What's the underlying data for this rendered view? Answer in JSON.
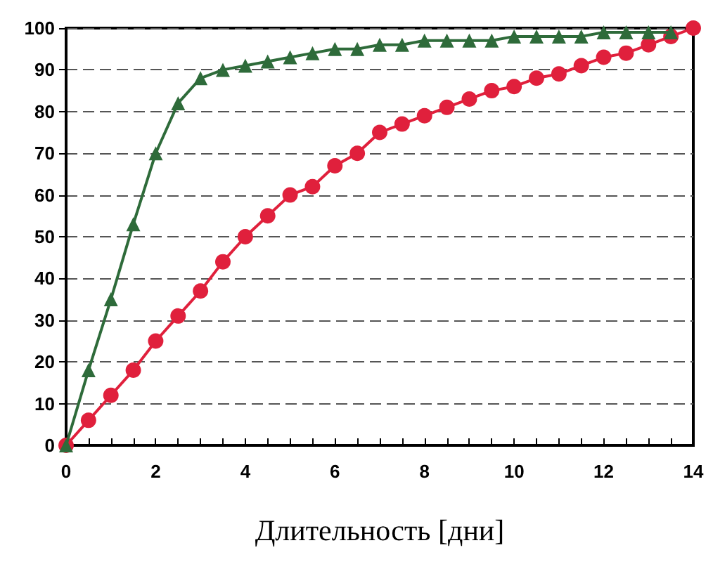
{
  "chart_data": {
    "type": "line",
    "xlabel": "Длительность [дни]",
    "x": [
      0,
      0.5,
      1,
      1.5,
      2,
      2.5,
      3,
      3.5,
      4,
      4.5,
      5,
      5.5,
      6,
      6.5,
      7,
      7.5,
      8,
      8.5,
      9,
      9.5,
      10,
      10.5,
      11,
      11.5,
      12,
      12.5,
      13,
      13.5,
      14
    ],
    "series": [
      {
        "color": "#2e6b3a",
        "marker": "triangle",
        "values": [
          0,
          18,
          35,
          53,
          70,
          82,
          88,
          90,
          91,
          92,
          93,
          94,
          95,
          95,
          96,
          96,
          97,
          97,
          97,
          97,
          98,
          98,
          98,
          98,
          99,
          99,
          99,
          99,
          null
        ]
      },
      {
        "color": "#e0203c",
        "marker": "circle",
        "values": [
          0,
          6,
          12,
          18,
          25,
          31,
          37,
          44,
          50,
          55,
          60,
          62,
          67,
          70,
          75,
          77,
          79,
          81,
          83,
          85,
          86,
          88,
          89,
          91,
          93,
          94,
          96,
          98,
          100
        ]
      }
    ],
    "xlim": [
      0,
      14
    ],
    "xticks": [
      0,
      2,
      4,
      6,
      8,
      10,
      12,
      14
    ],
    "ylim": [
      0,
      100
    ],
    "yticks": [
      0,
      10,
      20,
      30,
      40,
      50,
      60,
      70,
      80,
      90,
      100
    ],
    "grid": "y",
    "line_style": "solid"
  }
}
